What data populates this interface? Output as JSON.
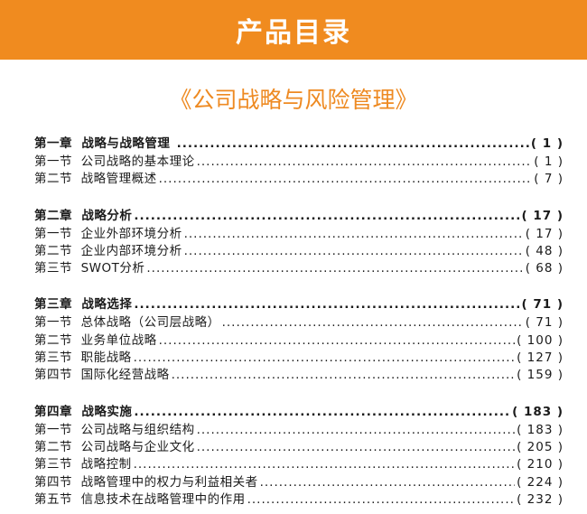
{
  "header": {
    "title": "产品目录",
    "color": "#f08b1f"
  },
  "book_title": "《公司战略与风险管理》",
  "chapters": [
    {
      "label": "第一章  战略与战略管理 ",
      "page": "( 1 )",
      "sections": [
        {
          "label": "第一节  公司战略的基本理论",
          "page": "( 1 )"
        },
        {
          "label": "第二节  战略管理概述",
          "page": "( 7 )"
        }
      ]
    },
    {
      "label": "第二章  战略分析",
      "page": "( 17 )",
      "sections": [
        {
          "label": "第一节  企业外部环境分析",
          "page": "( 17 )"
        },
        {
          "label": "第二节  企业内部环境分析",
          "page": "( 48 )"
        },
        {
          "label": "第三节  SWOT分析",
          "page": "( 68 )"
        }
      ]
    },
    {
      "label": "第三章  战略选择",
      "page": "( 71 )",
      "sections": [
        {
          "label": "第一节  总体战略（公司层战略）",
          "page": "( 71 )"
        },
        {
          "label": "第二节  业务单位战略",
          "page": "( 100 )"
        },
        {
          "label": "第三节  职能战略",
          "page": "( 127 )"
        },
        {
          "label": "第四节  国际化经营战略",
          "page": "( 159 )"
        }
      ]
    },
    {
      "label": "第四章  战略实施",
      "page": "( 183 )",
      "sections": [
        {
          "label": "第一节  公司战略与组织结构",
          "page": "( 183 )"
        },
        {
          "label": "第二节  公司战略与企业文化",
          "page": "( 205 )"
        },
        {
          "label": "第三节  战略控制",
          "page": "( 210 )"
        },
        {
          "label": "第四节  战略管理中的权力与利益相关者",
          "page": "( 224 )"
        },
        {
          "label": "第五节  信息技术在战略管理中的作用",
          "page": "( 232 )"
        }
      ]
    }
  ]
}
